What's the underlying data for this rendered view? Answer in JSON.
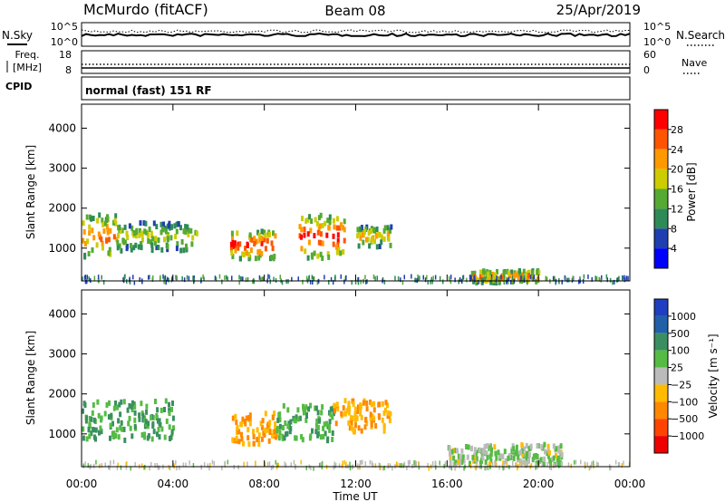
{
  "header": {
    "station": "McMurdo (fitACF)",
    "beam": "Beam 08",
    "date": "25/Apr/2019"
  },
  "strips": {
    "nsky_label": "N.Sky",
    "nsearch_label": "N.Search",
    "noise_ticks": [
      "10^5",
      "10^0"
    ],
    "freq_label_1": "Freq.",
    "freq_label_2": "[MHz]",
    "freq_ticks": [
      "18",
      "8"
    ],
    "nave_label": "Nave",
    "nave_ticks": [
      "60",
      "0"
    ],
    "cpid_label": "CPID",
    "cpid_text": "normal (fast) 151 RF"
  },
  "panels": {
    "ylabel": "Slant Range [km]",
    "yticks": [
      "4000",
      "3000",
      "2000",
      "1000"
    ],
    "xticks": [
      "00:00",
      "04:00",
      "08:00",
      "12:00",
      "16:00",
      "20:00",
      "00:00"
    ],
    "xlabel": "Time UT"
  },
  "power_scale": {
    "label": "Power [dB]",
    "ticks": [
      "28",
      "24",
      "20",
      "16",
      "12",
      "8",
      "4"
    ],
    "colors": [
      "#0000ff",
      "#1f3fb0",
      "#2e8b57",
      "#55aa33",
      "#cccc00",
      "#ff9900",
      "#ff5500",
      "#ff0000"
    ]
  },
  "velocity_scale": {
    "label": "Velocity [m s⁻¹]",
    "ticks": [
      "1000",
      "500",
      "100",
      "25",
      "−25",
      "−100",
      "−500",
      "−1000"
    ],
    "colors": [
      "#1f3fc0",
      "#2060a8",
      "#3a8f60",
      "#55bb44",
      "#bbbbbb",
      "#ffbb00",
      "#ff8800",
      "#ff4400",
      "#ee0000"
    ]
  },
  "chart_data": [
    {
      "type": "heatmap",
      "title": "Power",
      "xlabel": "Time UT",
      "ylabel": "Slant Range [km]",
      "xlim": [
        "00:00",
        "24:00"
      ],
      "ylim": [
        180,
        4600
      ],
      "colorbar": {
        "label": "Power [dB]",
        "range": [
          0,
          32
        ]
      },
      "echo_regions": [
        {
          "time": [
            "00:00",
            "01:30"
          ],
          "range_km": [
            800,
            1900
          ],
          "power_db": 26
        },
        {
          "time": [
            "01:30",
            "05:00"
          ],
          "range_km": [
            1000,
            1700
          ],
          "power_db": 18
        },
        {
          "time": [
            "06:30",
            "08:30"
          ],
          "range_km": [
            800,
            1500
          ],
          "power_db": 30
        },
        {
          "time": [
            "09:30",
            "11:30"
          ],
          "range_km": [
            800,
            1900
          ],
          "power_db": 30
        },
        {
          "time": [
            "12:00",
            "13:30"
          ],
          "range_km": [
            1100,
            1600
          ],
          "power_db": 22
        },
        {
          "time": [
            "17:00",
            "20:00"
          ],
          "range_km": [
            200,
            500
          ],
          "power_db": 26
        }
      ]
    },
    {
      "type": "heatmap",
      "title": "Velocity",
      "xlabel": "Time UT",
      "ylabel": "Slant Range [km]",
      "xlim": [
        "00:00",
        "24:00"
      ],
      "ylim": [
        180,
        4600
      ],
      "colorbar": {
        "label": "Velocity [m s⁻¹]",
        "range": [
          -1000,
          1000
        ]
      },
      "echo_regions": [
        {
          "time": [
            "00:00",
            "04:00"
          ],
          "range_km": [
            900,
            1900
          ],
          "velocity": 100
        },
        {
          "time": [
            "06:30",
            "08:30"
          ],
          "range_km": [
            800,
            1600
          ],
          "velocity": -100
        },
        {
          "time": [
            "08:30",
            "11:00"
          ],
          "range_km": [
            900,
            1800
          ],
          "velocity": 100
        },
        {
          "time": [
            "11:00",
            "13:30"
          ],
          "range_km": [
            1100,
            1900
          ],
          "velocity": -100
        },
        {
          "time": [
            "16:00",
            "21:00"
          ],
          "range_km": [
            300,
            800
          ],
          "velocity": 25
        }
      ]
    }
  ]
}
